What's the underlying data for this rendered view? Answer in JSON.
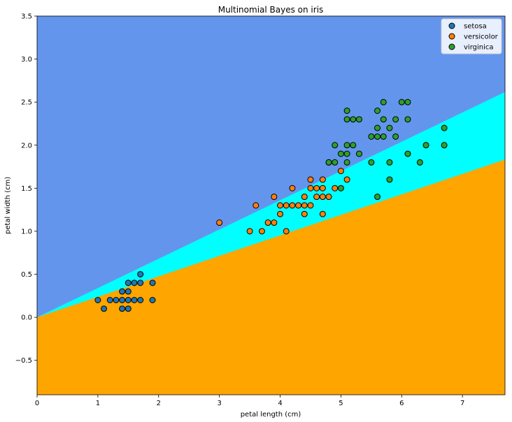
{
  "chart_data": {
    "type": "scatter",
    "title": "Multinomial Bayes on iris",
    "xlabel": "petal length (cm)",
    "ylabel": "petal width (cm)",
    "xlim": [
      0,
      7.7
    ],
    "ylim": [
      -0.9,
      3.5
    ],
    "xticks": [
      "0",
      "1",
      "2",
      "3",
      "4",
      "5",
      "6",
      "7"
    ],
    "yticks": [
      "−0.5",
      "0.0",
      "0.5",
      "1.0",
      "1.5",
      "2.0",
      "2.5",
      "3.0",
      "3.5"
    ],
    "xtick_values": [
      0,
      1,
      2,
      3,
      4,
      5,
      6,
      7
    ],
    "ytick_values": [
      -0.5,
      0,
      0.5,
      1.0,
      1.5,
      2.0,
      2.5,
      3.0,
      3.5
    ],
    "grid": false,
    "legend_position": "top-right",
    "decision_regions": [
      {
        "class": "virginica",
        "color": "#6495ED",
        "boundary": "above y = 0.34·x"
      },
      {
        "class": "versicolor",
        "color": "#00FFFF",
        "boundary": "between y = 0.238·x and y = 0.34·x"
      },
      {
        "class": "setosa",
        "color": "#FFA500",
        "boundary": "below y = 0.238·x"
      }
    ],
    "boundaries": [
      {
        "slope": 0.34,
        "intercept": 0
      },
      {
        "slope": 0.238,
        "intercept": 0
      }
    ],
    "series": [
      {
        "name": "setosa",
        "color": "#1f77b4",
        "points": [
          [
            1.0,
            0.2
          ],
          [
            1.1,
            0.1
          ],
          [
            1.2,
            0.2
          ],
          [
            1.3,
            0.2
          ],
          [
            1.4,
            0.2
          ],
          [
            1.4,
            0.3
          ],
          [
            1.4,
            0.1
          ],
          [
            1.5,
            0.2
          ],
          [
            1.5,
            0.1
          ],
          [
            1.5,
            0.4
          ],
          [
            1.5,
            0.3
          ],
          [
            1.6,
            0.2
          ],
          [
            1.6,
            0.4
          ],
          [
            1.7,
            0.2
          ],
          [
            1.7,
            0.4
          ],
          [
            1.7,
            0.5
          ],
          [
            1.9,
            0.2
          ],
          [
            1.9,
            0.4
          ]
        ]
      },
      {
        "name": "versicolor",
        "color": "#ff7f0e",
        "points": [
          [
            3.0,
            1.1
          ],
          [
            3.5,
            1.0
          ],
          [
            3.6,
            1.3
          ],
          [
            3.7,
            1.0
          ],
          [
            3.8,
            1.1
          ],
          [
            3.9,
            1.1
          ],
          [
            3.9,
            1.4
          ],
          [
            4.0,
            1.3
          ],
          [
            4.0,
            1.2
          ],
          [
            4.1,
            1.3
          ],
          [
            4.1,
            1.0
          ],
          [
            4.2,
            1.3
          ],
          [
            4.2,
            1.5
          ],
          [
            4.3,
            1.3
          ],
          [
            4.4,
            1.4
          ],
          [
            4.4,
            1.3
          ],
          [
            4.4,
            1.2
          ],
          [
            4.5,
            1.5
          ],
          [
            4.5,
            1.3
          ],
          [
            4.5,
            1.6
          ],
          [
            4.6,
            1.5
          ],
          [
            4.6,
            1.4
          ],
          [
            4.7,
            1.4
          ],
          [
            4.7,
            1.6
          ],
          [
            4.7,
            1.5
          ],
          [
            4.7,
            1.2
          ],
          [
            4.8,
            1.4
          ],
          [
            4.8,
            1.8
          ],
          [
            4.9,
            1.5
          ],
          [
            5.0,
            1.7
          ],
          [
            5.1,
            1.6
          ]
        ]
      },
      {
        "name": "virginica",
        "color": "#2ca02c",
        "points": [
          [
            4.8,
            1.8
          ],
          [
            4.9,
            1.8
          ],
          [
            4.9,
            2.0
          ],
          [
            5.0,
            1.5
          ],
          [
            5.0,
            1.9
          ],
          [
            5.1,
            1.9
          ],
          [
            5.1,
            2.0
          ],
          [
            5.1,
            2.3
          ],
          [
            5.1,
            2.4
          ],
          [
            5.1,
            1.8
          ],
          [
            5.2,
            2.0
          ],
          [
            5.2,
            2.3
          ],
          [
            5.3,
            1.9
          ],
          [
            5.3,
            2.3
          ],
          [
            5.5,
            1.8
          ],
          [
            5.5,
            2.1
          ],
          [
            5.6,
            1.4
          ],
          [
            5.6,
            2.1
          ],
          [
            5.6,
            2.2
          ],
          [
            5.6,
            2.4
          ],
          [
            5.7,
            2.1
          ],
          [
            5.7,
            2.3
          ],
          [
            5.7,
            2.5
          ],
          [
            5.8,
            1.6
          ],
          [
            5.8,
            1.8
          ],
          [
            5.8,
            2.2
          ],
          [
            5.9,
            2.1
          ],
          [
            5.9,
            2.3
          ],
          [
            6.0,
            2.5
          ],
          [
            6.1,
            1.9
          ],
          [
            6.1,
            2.3
          ],
          [
            6.1,
            2.5
          ],
          [
            6.3,
            1.8
          ],
          [
            6.4,
            2.0
          ],
          [
            6.7,
            2.0
          ],
          [
            6.7,
            2.2
          ]
        ]
      }
    ]
  }
}
